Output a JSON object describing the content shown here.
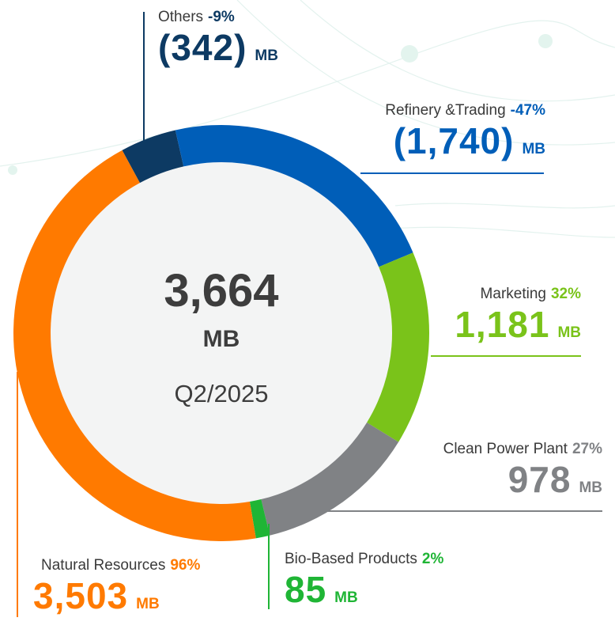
{
  "chart_data": {
    "type": "donut",
    "total": {
      "value": 3664,
      "label": "3,664"
    },
    "unit": "MB",
    "period": "Q2/2025",
    "categories": [
      "Others",
      "Refinery &Trading",
      "Marketing",
      "Clean Power Plant",
      "Bio-Based Products",
      "Natural Resources"
    ],
    "values": [
      -342,
      -1740,
      1181,
      978,
      85,
      3503
    ],
    "value_labels": [
      "(342)",
      "(1,740)",
      "1,181",
      "978",
      "85",
      "3,503"
    ],
    "changes": [
      -9,
      -47,
      32,
      27,
      2,
      96
    ],
    "change_labels": [
      "-9%",
      "-47%",
      "32%",
      "27%",
      "2%",
      "96%"
    ],
    "colors": [
      "#0d3a63",
      "#005eb8",
      "#7ac31a",
      "#808285",
      "#1fb535",
      "#ff7a00"
    ]
  }
}
